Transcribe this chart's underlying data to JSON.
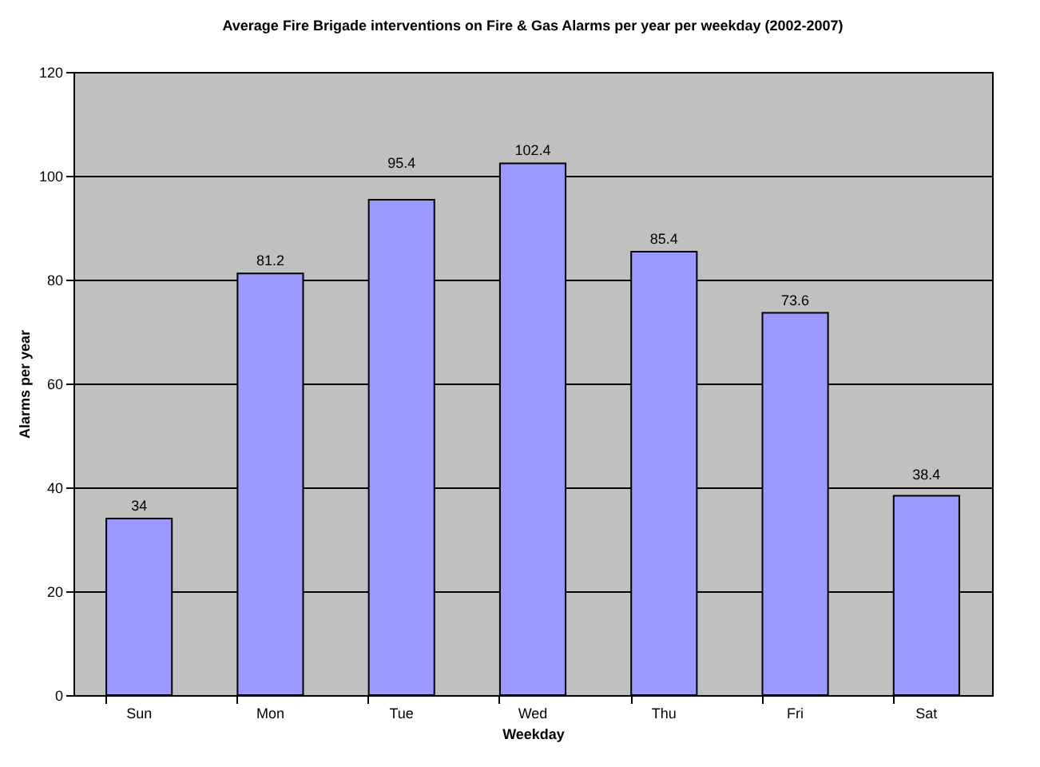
{
  "chart_data": {
    "type": "bar",
    "title": "Average Fire Brigade interventions on Fire & Gas Alarms per year per weekday (2002-2007)",
    "xlabel": "Weekday",
    "ylabel": "Alarms per year",
    "categories": [
      "Sun",
      "Mon",
      "Tue",
      "Wed",
      "Thu",
      "Fri",
      "Sat"
    ],
    "values": [
      34,
      81.2,
      95.4,
      102.4,
      85.4,
      73.6,
      38.4
    ],
    "color": "#9999ff",
    "ylim": [
      0,
      120
    ],
    "yticks": [
      0,
      20,
      40,
      60,
      80,
      100,
      120
    ],
    "grid": "y",
    "data_labels": true
  }
}
